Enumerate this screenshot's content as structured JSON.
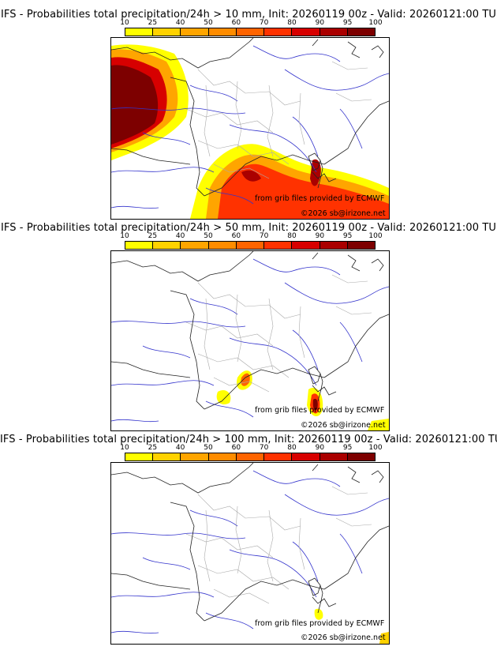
{
  "scale": {
    "labels": [
      "10",
      "25",
      "40",
      "50",
      "60",
      "70",
      "80",
      "90",
      "95",
      "100"
    ],
    "colors": [
      "#ffff00",
      "#ffd200",
      "#ffa500",
      "#ff8c00",
      "#ff6400",
      "#ff3200",
      "#d70000",
      "#aa0000",
      "#7d0000"
    ]
  },
  "panels": [
    {
      "title": "IFS - Probabilities total precipitation/24h > 10 mm, Init: 20260119 00z - Valid: 20260121:00 TU",
      "source": "from grib files provided by ECMWF",
      "copyright": "©2026 sb@irizone.net"
    },
    {
      "title": "IFS - Probabilities total precipitation/24h > 50 mm, Init: 20260119 00z - Valid: 20260121:00 TU",
      "source": "from grib files provided by ECMWF",
      "copyright": "©2026 sb@irizone.net"
    },
    {
      "title": "IFS - Probabilities total precipitation/24h > 100 mm, Init: 20260119 00z - Valid: 20260121:00 TU",
      "source": "from grib files provided by ECMWF",
      "copyright": "©2026 sb@irizone.net"
    }
  ]
}
